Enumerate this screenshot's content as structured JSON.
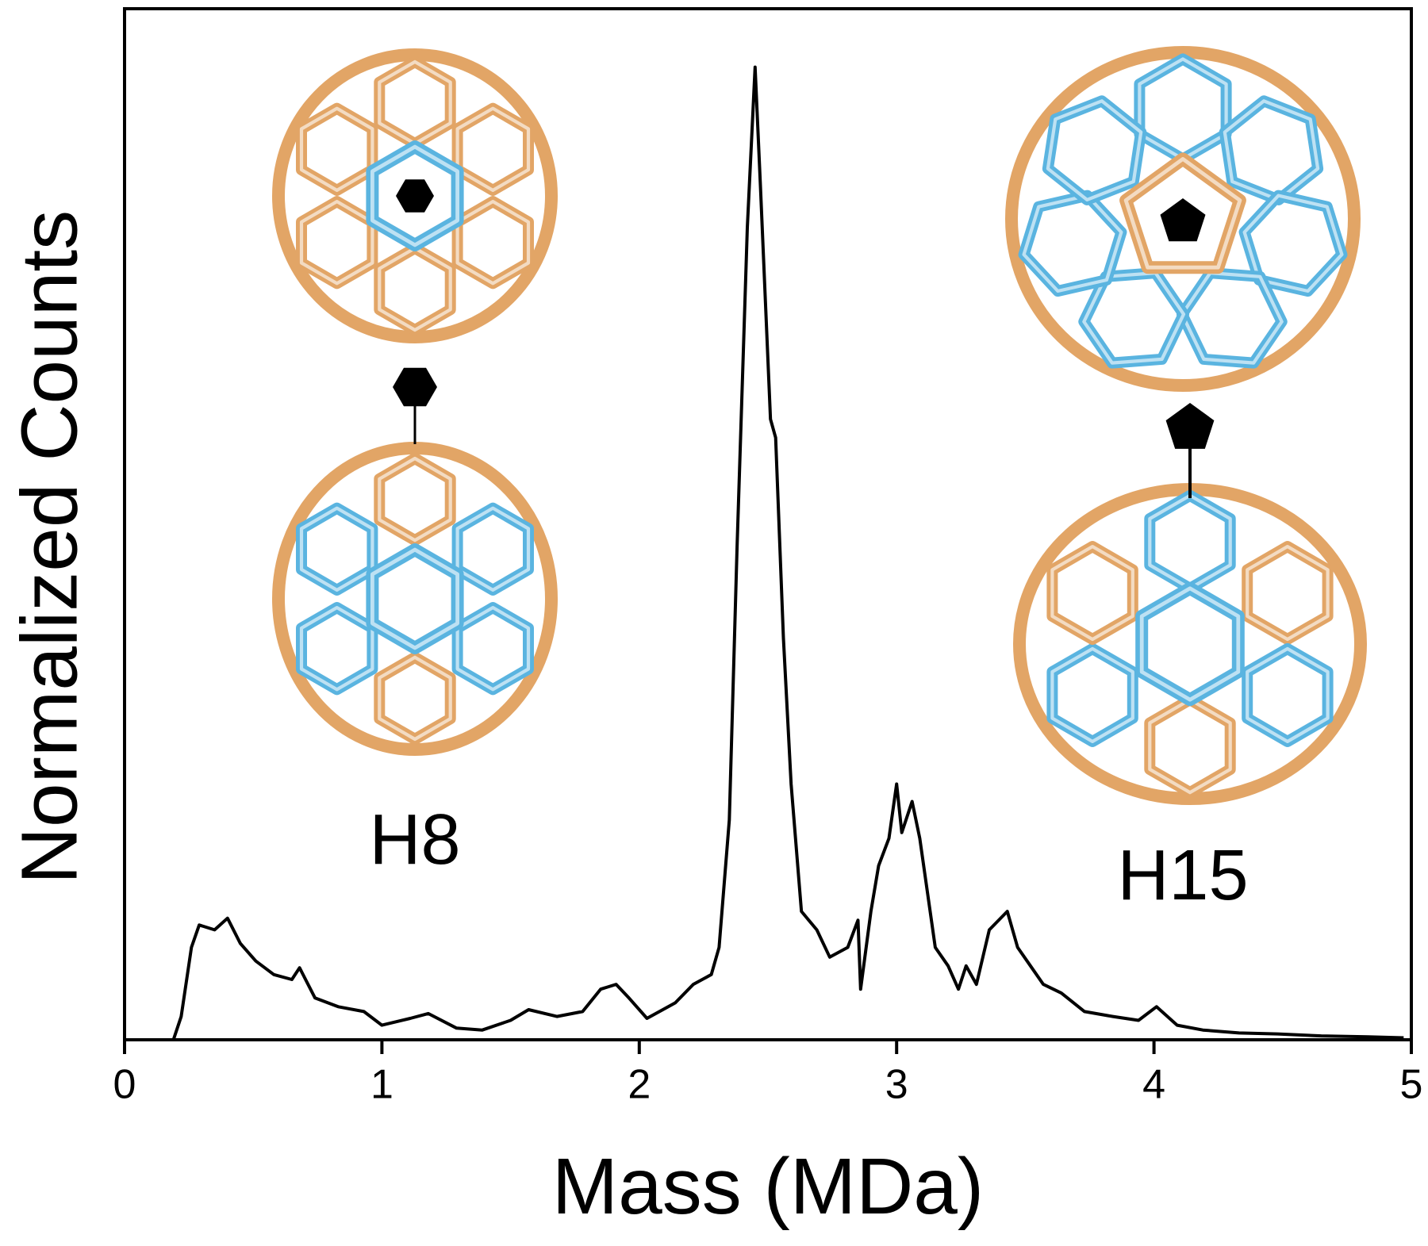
{
  "chart_data": {
    "type": "line",
    "xlabel": "Mass (MDa)",
    "ylabel": "Normalized Counts",
    "annotations": [
      "H8",
      "H15"
    ],
    "color": "#000000",
    "xlim": [
      0,
      5
    ],
    "xticks": [
      0,
      1,
      2,
      3,
      4,
      5
    ],
    "ylim": [
      0,
      1.06
    ],
    "x": [
      0.19,
      0.22,
      0.26,
      0.29,
      0.35,
      0.4,
      0.45,
      0.51,
      0.58,
      0.65,
      0.68,
      0.74,
      0.83,
      0.93,
      1.0,
      1.11,
      1.18,
      1.29,
      1.39,
      1.5,
      1.57,
      1.68,
      1.78,
      1.85,
      1.91,
      1.96,
      2.03,
      2.14,
      2.21,
      2.28,
      2.31,
      2.35,
      2.38,
      2.42,
      2.45,
      2.47,
      2.51,
      2.53,
      2.56,
      2.59,
      2.63,
      2.69,
      2.74,
      2.81,
      2.85,
      2.86,
      2.9,
      2.93,
      2.97,
      3.0,
      3.02,
      3.06,
      3.09,
      3.15,
      3.2,
      3.24,
      3.27,
      3.31,
      3.36,
      3.43,
      3.47,
      3.52,
      3.57,
      3.64,
      3.73,
      3.84,
      3.94,
      4.01,
      4.09,
      4.19,
      4.33,
      4.48,
      4.65,
      4.83,
      4.97
    ],
    "values": [
      0,
      0.024,
      0.095,
      0.118,
      0.113,
      0.125,
      0.099,
      0.081,
      0.067,
      0.062,
      0.074,
      0.043,
      0.034,
      0.029,
      0.015,
      0.022,
      0.027,
      0.012,
      0.01,
      0.02,
      0.031,
      0.024,
      0.029,
      0.052,
      0.057,
      0.043,
      0.022,
      0.038,
      0.057,
      0.067,
      0.095,
      0.226,
      0.507,
      0.835,
      1.0,
      0.882,
      0.638,
      0.619,
      0.413,
      0.263,
      0.132,
      0.113,
      0.085,
      0.095,
      0.123,
      0.052,
      0.132,
      0.179,
      0.207,
      0.263,
      0.213,
      0.245,
      0.207,
      0.095,
      0.076,
      0.052,
      0.076,
      0.057,
      0.113,
      0.132,
      0.095,
      0.076,
      0.057,
      0.048,
      0.029,
      0.024,
      0.02,
      0.034,
      0.015,
      0.01,
      0.007,
      0.006,
      0.004,
      0.003,
      0.002
    ]
  }
}
